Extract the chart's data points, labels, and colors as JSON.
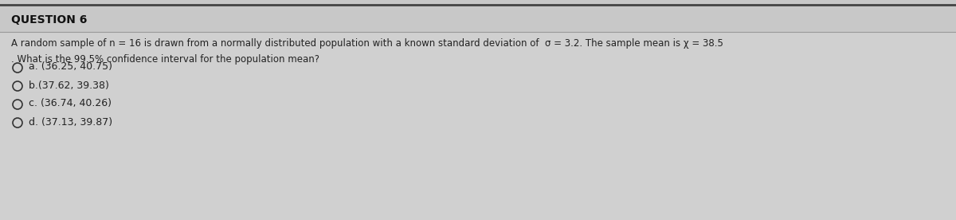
{
  "title": "QUESTION 6",
  "bg_color": "#c8c8c8",
  "content_bg": "#d4d4d4",
  "top_line_color": "#555555",
  "divider_color": "#999999",
  "title_color": "#111111",
  "text_color": "#222222",
  "line1": "A random sample of n = 16 is drawn from a normally distributed population with a known standard deviation of  σ = 3.2. The sample mean is χ = 38.5",
  "line2": ". What is the 99.5% confidence interval for the population mean?",
  "options": [
    "a. (36.25, 40.75)",
    "b.(37.62, 39.38)",
    "c. (36.74, 40.26)",
    "d. (37.13, 39.87)"
  ],
  "title_fontsize": 10,
  "text_fontsize": 8.5,
  "option_fontsize": 9
}
